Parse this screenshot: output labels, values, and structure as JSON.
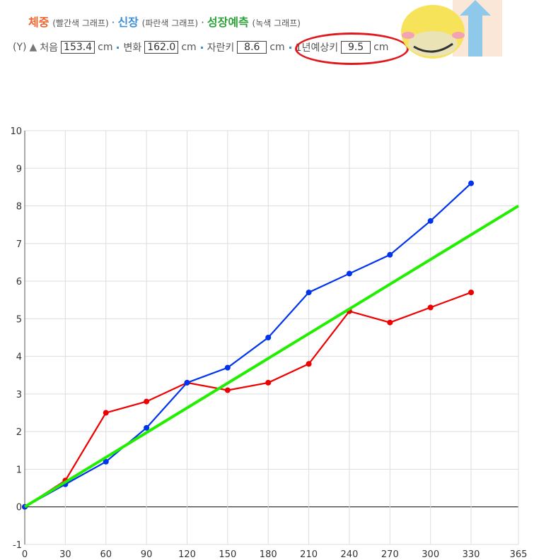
{
  "header": {
    "legend": [
      {
        "name": "체중",
        "color": "#f0642d",
        "note": "(빨간색 그래프)"
      },
      {
        "name": "신장",
        "color": "#3d8fd6",
        "note": "(파란색 그래프)"
      },
      {
        "name": "성장예측",
        "color": "#2ea33a",
        "note": "(녹색 그래프)"
      }
    ],
    "separator": "·",
    "axis_label": "(Y)",
    "stats": [
      {
        "label": "처음",
        "value": "153.4",
        "unit": "cm"
      },
      {
        "label": "변화",
        "value": "162.0",
        "unit": "cm"
      },
      {
        "label": "자란키",
        "value": "8.6",
        "unit": "cm"
      },
      {
        "label": "1년예상키",
        "value": "9.5",
        "unit": "cm"
      }
    ]
  },
  "chart_data": {
    "type": "line",
    "x": [
      0,
      30,
      60,
      90,
      120,
      150,
      180,
      210,
      240,
      270,
      300,
      330
    ],
    "series": [
      {
        "color": "#ee0000",
        "values": [
          0,
          0.7,
          2.5,
          2.8,
          3.3,
          3.1,
          3.3,
          3.8,
          5.2,
          4.9,
          5.3,
          5.7
        ]
      },
      {
        "color": "#0033ee",
        "values": [
          0,
          0.6,
          1.2,
          2.1,
          3.3,
          3.7,
          4.5,
          5.7,
          6.2,
          6.7,
          7.6,
          8.6
        ]
      },
      {
        "color": "#22ee00",
        "x": [
          0,
          365
        ],
        "values": [
          0,
          8.0
        ]
      }
    ],
    "xlim": [
      0,
      365
    ],
    "xticks": [
      0,
      30,
      60,
      90,
      120,
      150,
      180,
      210,
      240,
      270,
      300,
      330,
      365
    ],
    "ylim": [
      -1,
      10
    ],
    "yticks": [
      -1,
      0,
      1,
      2,
      3,
      4,
      5,
      6,
      7,
      8,
      9,
      10
    ],
    "grid": true
  }
}
